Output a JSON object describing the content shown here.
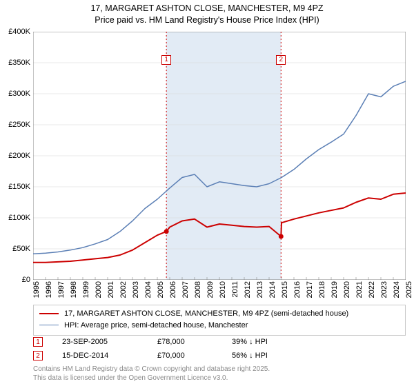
{
  "title_line1": "17, MARGARET ASHTON CLOSE, MANCHESTER, M9 4PZ",
  "title_line2": "Price paid vs. HM Land Registry's House Price Index (HPI)",
  "chart": {
    "type": "line",
    "background_color": "#ffffff",
    "grid_color": "#d6d6d6",
    "axis_color": "#888888",
    "label_fontsize": 11,
    "x_min": 1995,
    "x_max": 2025,
    "x_tick_step": 1,
    "y_min": 0,
    "y_max": 400000,
    "y_tick_step": 50000,
    "y_tick_labels": [
      "£0",
      "£50K",
      "£100K",
      "£150K",
      "£200K",
      "£250K",
      "£300K",
      "£350K",
      "£400K"
    ],
    "series": [
      {
        "name": "price_paid",
        "color": "#cc0000",
        "width": 2,
        "x": [
          1995,
          1996,
          1997,
          1998,
          1999,
          2000,
          2001,
          2002,
          2003,
          2004,
          2005,
          2005.73,
          2006,
          2007,
          2008,
          2009,
          2010,
          2011,
          2012,
          2013,
          2014,
          2014.96,
          2015,
          2016,
          2017,
          2018,
          2019,
          2020,
          2021,
          2022,
          2023,
          2024,
          2025
        ],
        "y": [
          28000,
          28000,
          29000,
          30000,
          32000,
          34000,
          36000,
          40000,
          48000,
          60000,
          72000,
          78000,
          85000,
          95000,
          98000,
          85000,
          90000,
          88000,
          86000,
          85000,
          86000,
          70000,
          92000,
          98000,
          103000,
          108000,
          112000,
          116000,
          125000,
          132000,
          130000,
          138000,
          140000
        ]
      },
      {
        "name": "hpi",
        "color": "#5b7fb5",
        "width": 1.5,
        "x": [
          1995,
          1996,
          1997,
          1998,
          1999,
          2000,
          2001,
          2002,
          2003,
          2004,
          2005,
          2006,
          2007,
          2008,
          2009,
          2010,
          2011,
          2012,
          2013,
          2014,
          2015,
          2016,
          2017,
          2018,
          2019,
          2020,
          2021,
          2022,
          2023,
          2024,
          2025
        ],
        "y": [
          42000,
          43000,
          45000,
          48000,
          52000,
          58000,
          65000,
          78000,
          95000,
          115000,
          130000,
          148000,
          165000,
          170000,
          150000,
          158000,
          155000,
          152000,
          150000,
          155000,
          165000,
          178000,
          195000,
          210000,
          222000,
          235000,
          265000,
          300000,
          295000,
          312000,
          320000
        ]
      }
    ],
    "vertical_markers": [
      {
        "label": "1",
        "x": 2005.73,
        "color": "#cc0000",
        "label_y": 355000
      },
      {
        "label": "2",
        "x": 2014.96,
        "color": "#cc0000",
        "label_y": 355000
      }
    ],
    "shaded_region": {
      "x_start": 2005.73,
      "x_end": 2014.96,
      "fill": "#e2ebf5"
    },
    "sale_points": [
      {
        "x": 2005.73,
        "y": 78000,
        "color": "#cc0000"
      },
      {
        "x": 2014.96,
        "y": 70000,
        "color": "#cc0000"
      }
    ]
  },
  "legend": {
    "items": [
      {
        "color": "#cc0000",
        "width": 2,
        "label": "17, MARGARET ASHTON CLOSE, MANCHESTER, M9 4PZ (semi-detached house)"
      },
      {
        "color": "#5b7fb5",
        "width": 1.5,
        "label": "HPI: Average price, semi-detached house, Manchester"
      }
    ]
  },
  "markers_table": [
    {
      "label": "1",
      "border": "#cc0000",
      "date": "23-SEP-2005",
      "price": "£78,000",
      "delta": "39% ↓ HPI"
    },
    {
      "label": "2",
      "border": "#cc0000",
      "date": "15-DEC-2014",
      "price": "£70,000",
      "delta": "56% ↓ HPI"
    }
  ],
  "footer_line1": "Contains HM Land Registry data © Crown copyright and database right 2025.",
  "footer_line2": "This data is licensed under the Open Government Licence v3.0."
}
